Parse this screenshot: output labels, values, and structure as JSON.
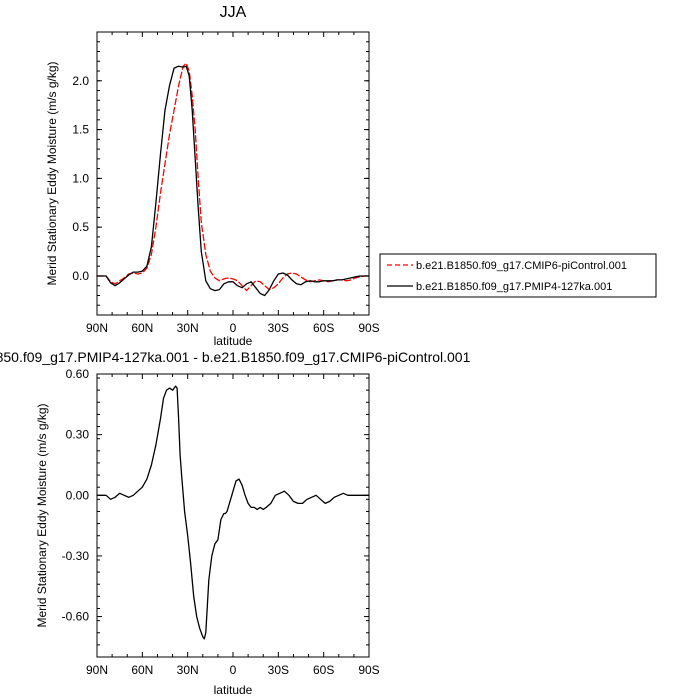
{
  "chart_data": [
    {
      "type": "line",
      "title": "JJA",
      "xlabel": "latitude",
      "ylabel": "Merid Stationary Eddy Moisture (m/s g/kg)",
      "xlim": [
        90,
        -90
      ],
      "ylim": [
        -0.4,
        2.5
      ],
      "xticks": [
        90,
        60,
        30,
        0,
        -30,
        -60,
        -90
      ],
      "xtick_labels": [
        "90N",
        "60N",
        "30N",
        "0",
        "30S",
        "60S",
        "90S"
      ],
      "yticks": [
        0.0,
        0.5,
        1.0,
        1.5,
        2.0
      ],
      "ytick_labels": [
        "0.0",
        "0.5",
        "1.0",
        "1.5",
        "2.0"
      ],
      "legend_placement": "right",
      "series": [
        {
          "name": "b.e21.B1850.f09_g17.CMIP6-piControl.001",
          "color": "#ff0000",
          "dash": "dashed",
          "x": [
            90,
            84,
            81,
            78,
            75,
            72,
            69,
            66,
            63,
            60,
            57,
            54,
            51,
            48,
            45,
            42,
            39,
            36,
            33,
            31,
            29,
            27,
            25,
            23,
            21,
            18,
            15,
            12,
            9,
            6,
            3,
            0,
            -3,
            -6,
            -9,
            -12,
            -15,
            -18,
            -21,
            -24,
            -27,
            -30,
            -33,
            -36,
            -39,
            -42,
            -45,
            -48,
            -51,
            -54,
            -57,
            -60,
            -63,
            -66,
            -69,
            -72,
            -75,
            -78,
            -81,
            -84,
            -87,
            -90
          ],
          "y": [
            0.0,
            0.0,
            -0.06,
            -0.08,
            -0.05,
            -0.02,
            0.02,
            0.03,
            0.02,
            0.03,
            0.08,
            0.22,
            0.5,
            0.85,
            1.15,
            1.45,
            1.7,
            1.95,
            2.15,
            2.18,
            2.1,
            1.85,
            1.5,
            1.0,
            0.55,
            0.22,
            0.05,
            -0.02,
            -0.05,
            -0.03,
            -0.02,
            -0.03,
            -0.05,
            -0.1,
            -0.15,
            -0.1,
            -0.05,
            -0.06,
            -0.1,
            -0.14,
            -0.12,
            -0.08,
            -0.02,
            0.02,
            0.03,
            0.02,
            -0.01,
            -0.04,
            -0.06,
            -0.05,
            -0.04,
            -0.05,
            -0.06,
            -0.05,
            -0.04,
            -0.04,
            -0.05,
            -0.04,
            -0.02,
            -0.01,
            0.0,
            0.0
          ]
        },
        {
          "name": "b.e21.B1850.f09_g17.PMIP4-127ka.001",
          "color": "#000000",
          "dash": "solid",
          "x": [
            90,
            84,
            81,
            78,
            75,
            72,
            69,
            66,
            63,
            60,
            57,
            54,
            51,
            48,
            45,
            42,
            39,
            36,
            33,
            31,
            29,
            27,
            25,
            23,
            21,
            18,
            15,
            12,
            9,
            6,
            3,
            0,
            -3,
            -6,
            -9,
            -12,
            -15,
            -18,
            -21,
            -24,
            -27,
            -30,
            -33,
            -36,
            -39,
            -42,
            -45,
            -48,
            -51,
            -54,
            -57,
            -60,
            -63,
            -66,
            -69,
            -72,
            -75,
            -78,
            -81,
            -84,
            -87,
            -90
          ],
          "y": [
            0.0,
            0.0,
            -0.07,
            -0.1,
            -0.07,
            -0.03,
            0.01,
            0.04,
            0.04,
            0.05,
            0.1,
            0.3,
            0.75,
            1.25,
            1.7,
            1.95,
            2.13,
            2.15,
            2.14,
            2.15,
            2.05,
            1.7,
            1.2,
            0.7,
            0.25,
            -0.05,
            -0.13,
            -0.15,
            -0.14,
            -0.08,
            -0.06,
            -0.06,
            -0.1,
            -0.12,
            -0.08,
            -0.06,
            -0.12,
            -0.18,
            -0.2,
            -0.14,
            -0.05,
            0.02,
            0.03,
            0.01,
            -0.04,
            -0.08,
            -0.09,
            -0.06,
            -0.05,
            -0.06,
            -0.06,
            -0.05,
            -0.05,
            -0.05,
            -0.04,
            -0.04,
            -0.03,
            -0.02,
            -0.01,
            0.0,
            0.0,
            0.0
          ]
        }
      ]
    },
    {
      "type": "line",
      "title": "850.f09_g17.PMIP4-127ka.001 - b.e21.B1850.f09_g17.CMIP6-piControl.001",
      "xlabel": "latitude",
      "ylabel": "Merid Stationary Eddy Moisture (m/s g/kg)",
      "xlim": [
        90,
        -90
      ],
      "ylim": [
        -0.8,
        0.6
      ],
      "xticks": [
        90,
        60,
        30,
        0,
        -30,
        -60,
        -90
      ],
      "xtick_labels": [
        "90N",
        "60N",
        "30N",
        "0",
        "30S",
        "60S",
        "90S"
      ],
      "yticks": [
        0.6,
        0.3,
        0.0,
        -0.3,
        -0.6
      ],
      "ytick_labels": [
        "0.60",
        "0.30",
        "0.00",
        "-0.30",
        "-0.60"
      ],
      "series": [
        {
          "color": "#000000",
          "dash": "solid",
          "x": [
            90,
            84,
            81,
            78,
            75,
            72,
            69,
            66,
            63,
            60,
            57,
            54,
            51,
            48,
            46,
            44,
            42,
            40,
            39,
            38,
            37,
            36,
            35,
            34,
            32,
            30,
            28,
            26,
            24,
            22,
            20,
            19,
            18,
            17,
            16,
            14,
            12,
            10,
            8,
            6,
            5,
            4,
            2,
            0,
            -2,
            -4,
            -6,
            -8,
            -10,
            -12,
            -14,
            -16,
            -18,
            -20,
            -22,
            -25,
            -28,
            -31,
            -34,
            -37,
            -40,
            -43,
            -46,
            -49,
            -52,
            -55,
            -58,
            -61,
            -64,
            -67,
            -70,
            -73,
            -76,
            -80,
            -84,
            -87,
            -90
          ],
          "y": [
            0.0,
            0.0,
            -0.02,
            -0.01,
            0.01,
            0.0,
            -0.01,
            0.0,
            0.02,
            0.04,
            0.08,
            0.15,
            0.25,
            0.38,
            0.48,
            0.52,
            0.53,
            0.52,
            0.53,
            0.54,
            0.53,
            0.38,
            0.2,
            0.1,
            -0.08,
            -0.2,
            -0.34,
            -0.5,
            -0.6,
            -0.66,
            -0.7,
            -0.71,
            -0.68,
            -0.55,
            -0.42,
            -0.3,
            -0.24,
            -0.22,
            -0.12,
            -0.09,
            -0.09,
            -0.08,
            -0.03,
            0.02,
            0.07,
            0.08,
            0.05,
            0.0,
            -0.04,
            -0.06,
            -0.06,
            -0.07,
            -0.06,
            -0.07,
            -0.06,
            -0.04,
            0.0,
            0.01,
            0.02,
            0.0,
            -0.03,
            -0.04,
            -0.04,
            -0.02,
            -0.01,
            0.0,
            -0.02,
            -0.04,
            -0.03,
            -0.01,
            0.0,
            0.01,
            0.0,
            0.0,
            0.0,
            0.0,
            0.0
          ]
        }
      ]
    }
  ]
}
